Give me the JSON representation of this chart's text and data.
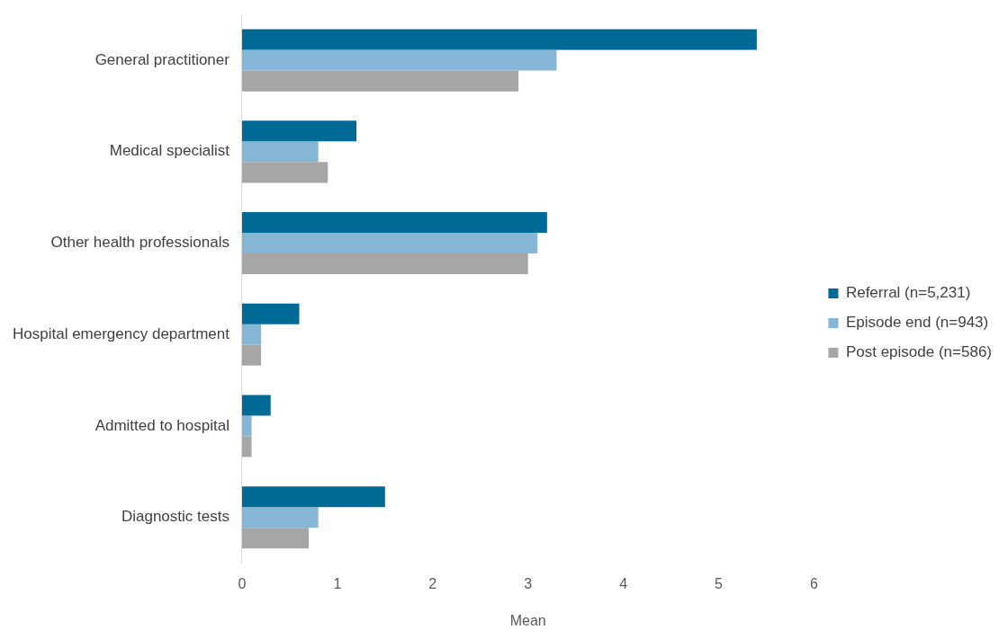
{
  "chart_data": {
    "type": "bar",
    "orientation": "horizontal",
    "xlabel": "Mean",
    "categories": [
      "General practitioner",
      "Medical specialist",
      "Other health professionals",
      "Hospital emergency department",
      "Admitted to hospital",
      "Diagnostic tests"
    ],
    "series": [
      {
        "name": "Referral (n=5,231)",
        "color": "#006a96",
        "values": [
          5.4,
          1.2,
          3.2,
          0.6,
          0.3,
          1.5
        ]
      },
      {
        "name": "Episode end (n=943)",
        "color": "#85b6d6",
        "values": [
          3.3,
          0.8,
          3.1,
          0.2,
          0.1,
          0.8
        ]
      },
      {
        "name": "Post episode (n=586)",
        "color": "#a6a6a6",
        "values": [
          2.9,
          0.9,
          3.0,
          0.2,
          0.1,
          0.7
        ]
      }
    ],
    "xlim": [
      0,
      6
    ],
    "xticks": [
      0,
      1,
      2,
      3,
      4,
      5,
      6
    ],
    "grid": false,
    "legend": "right"
  }
}
